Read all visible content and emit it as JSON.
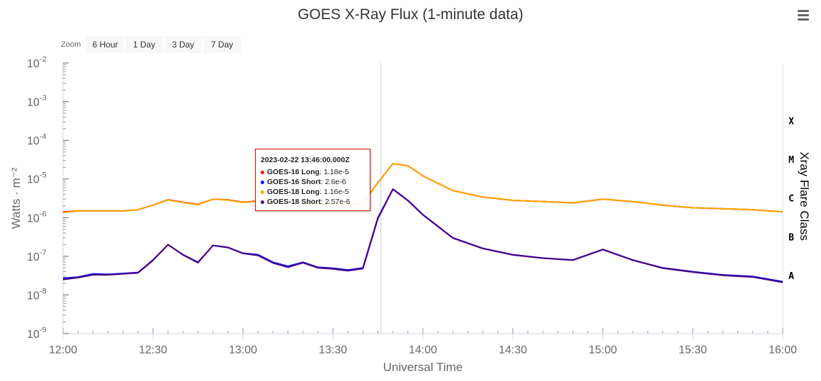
{
  "title": "GOES X-Ray Flux (1-minute data)",
  "zoom": {
    "label": "Zoom",
    "buttons": [
      "6 Hour",
      "1 Day",
      "3 Day",
      "7 Day"
    ]
  },
  "menu_icon": "hamburger-menu-icon",
  "chart_data": {
    "type": "line",
    "title": "GOES X-Ray Flux (1-minute data)",
    "xlabel": "Universal Time",
    "ylabel": "Watts · m⁻²",
    "y2label": "Xray Flare Class",
    "yscale": "log",
    "ylim": [
      1e-09,
      0.01
    ],
    "xlim": [
      "12:00",
      "16:00"
    ],
    "x_ticks": [
      "12:00",
      "12:30",
      "13:00",
      "13:30",
      "14:00",
      "14:30",
      "15:00",
      "15:30",
      "16:00"
    ],
    "y_ticks": [
      {
        "base": "10",
        "exp": "-2",
        "value": 0.01
      },
      {
        "base": "10",
        "exp": "-3",
        "value": 0.001
      },
      {
        "base": "10",
        "exp": "-4",
        "value": 0.0001
      },
      {
        "base": "10",
        "exp": "-5",
        "value": 1e-05
      },
      {
        "base": "10",
        "exp": "-6",
        "value": 1e-06
      },
      {
        "base": "10",
        "exp": "-7",
        "value": 1e-07
      },
      {
        "base": "10",
        "exp": "-8",
        "value": 1e-08
      },
      {
        "base": "10",
        "exp": "-9",
        "value": 1e-09
      }
    ],
    "flare_classes": [
      {
        "label": "X",
        "value": 0.0001
      },
      {
        "label": "M",
        "value": 1e-05
      },
      {
        "label": "C",
        "value": 1e-06
      },
      {
        "label": "B",
        "value": 1e-07
      },
      {
        "label": "A",
        "value": 1e-08
      }
    ],
    "crosshair_x": "13:46",
    "x": [
      "12:00",
      "12:05",
      "12:10",
      "12:15",
      "12:20",
      "12:25",
      "12:30",
      "12:35",
      "12:40",
      "12:45",
      "12:50",
      "12:55",
      "13:00",
      "13:05",
      "13:10",
      "13:15",
      "13:20",
      "13:25",
      "13:30",
      "13:35",
      "13:40",
      "13:45",
      "13:50",
      "13:55",
      "14:00",
      "14:10",
      "14:20",
      "14:30",
      "14:40",
      "14:50",
      "15:00",
      "15:10",
      "15:20",
      "15:30",
      "15:40",
      "15:50",
      "16:00"
    ],
    "series": [
      {
        "name": "GOES-16 Long",
        "color": "#ff0000",
        "values": [
          1.4e-06,
          1.5e-06,
          1.5e-06,
          1.5e-06,
          1.5e-06,
          1.6e-06,
          2.1e-06,
          2.9e-06,
          2.5e-06,
          2.2e-06,
          3e-06,
          2.9e-06,
          2.5e-06,
          2.7e-06,
          2.4e-06,
          2.5e-06,
          2.4e-06,
          2.2e-06,
          2.3e-06,
          2.2e-06,
          2.4e-06,
          8e-06,
          2.5e-05,
          2.2e-05,
          1.2e-05,
          5e-06,
          3.4e-06,
          2.8e-06,
          2.6e-06,
          2.4e-06,
          3e-06,
          2.6e-06,
          2.1e-06,
          1.8e-06,
          1.7e-06,
          1.6e-06,
          1.4e-06
        ]
      },
      {
        "name": "GOES-16 Short",
        "color": "#0000ff",
        "values": [
          2.7e-08,
          2.9e-08,
          3.5e-08,
          3.4e-08,
          3.6e-08,
          3.8e-08,
          8e-08,
          2e-07,
          1.1e-07,
          7e-08,
          1.9e-07,
          1.7e-07,
          1.2e-07,
          1.1e-07,
          7e-08,
          5.5e-08,
          7e-08,
          5.2e-08,
          4.9e-08,
          4.4e-08,
          5e-08,
          1e-06,
          5.5e-06,
          2.8e-06,
          1.2e-06,
          3e-07,
          1.6e-07,
          1.1e-07,
          9e-08,
          8e-08,
          1.5e-07,
          8e-08,
          5e-08,
          4e-08,
          3.3e-08,
          3e-08,
          2.2e-08
        ]
      },
      {
        "name": "GOES-18 Long",
        "color": "#ffa500",
        "values": [
          1.35e-06,
          1.5e-06,
          1.5e-06,
          1.5e-06,
          1.5e-06,
          1.6e-06,
          2.1e-06,
          2.85e-06,
          2.45e-06,
          2.15e-06,
          3e-06,
          2.85e-06,
          2.45e-06,
          2.65e-06,
          2.35e-06,
          2.45e-06,
          2.35e-06,
          2.15e-06,
          2.25e-06,
          2.15e-06,
          2.35e-06,
          8e-06,
          2.5e-05,
          2.2e-05,
          1.2e-05,
          5e-06,
          3.4e-06,
          2.8e-06,
          2.6e-06,
          2.4e-06,
          3e-06,
          2.6e-06,
          2.1e-06,
          1.8e-06,
          1.7e-06,
          1.6e-06,
          1.4e-06
        ]
      },
      {
        "name": "GOES-18 Short",
        "color": "#4b0082",
        "values": [
          2.5e-08,
          2.8e-08,
          3.3e-08,
          3.3e-08,
          3.5e-08,
          3.7e-08,
          7.8e-08,
          2e-07,
          1.08e-07,
          6.8e-08,
          1.9e-07,
          1.68e-07,
          1.18e-07,
          1.05e-07,
          6.7e-08,
          5.2e-08,
          6.8e-08,
          5e-08,
          4.7e-08,
          4.2e-08,
          4.8e-08,
          9.5e-07,
          5.4e-06,
          2.75e-06,
          1.18e-06,
          2.95e-07,
          1.58e-07,
          1.08e-07,
          8.9e-08,
          7.9e-08,
          1.48e-07,
          7.9e-08,
          4.9e-08,
          3.9e-08,
          3.2e-08,
          2.9e-08,
          2.1e-08
        ]
      }
    ],
    "tooltip": {
      "time": "2023-02-22 13:46:00.000Z",
      "rows": [
        {
          "name": "GOES-16 Long",
          "value": "1.18e-5",
          "color": "#ff0000"
        },
        {
          "name": "GOES-16 Short",
          "value": "2.6e-6",
          "color": "#0000ff"
        },
        {
          "name": "GOES-18 Long",
          "value": "1.16e-5",
          "color": "#ffa500"
        },
        {
          "name": "GOES-18 Short",
          "value": "2.57e-6",
          "color": "#4b0082"
        }
      ]
    }
  }
}
